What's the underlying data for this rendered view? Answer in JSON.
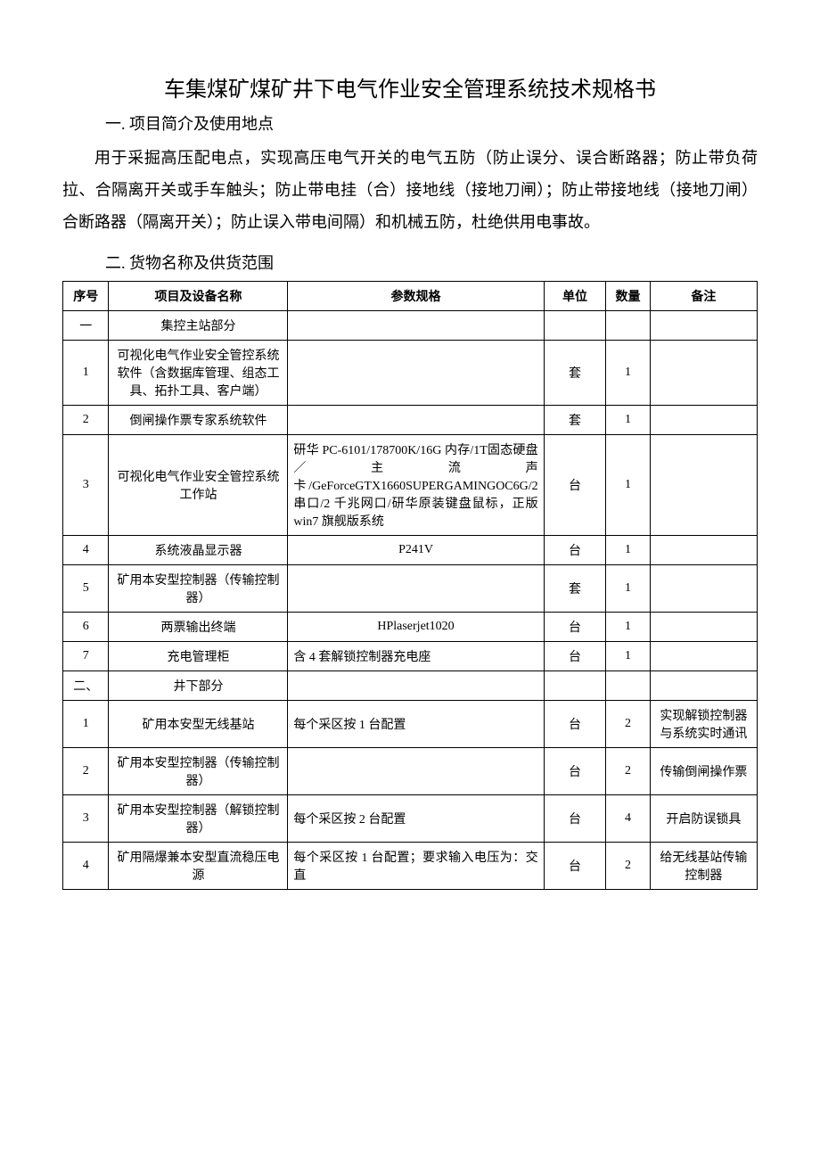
{
  "title": "车集煤矿煤矿井下电气作业安全管理系统技术规格书",
  "section1": {
    "heading": "一. 项目简介及使用地点",
    "paragraph": "用于采掘高压配电点，实现高压电气开关的电气五防（防止误分、误合断路器；防止带负荷拉、合隔离开关或手车触头；防止带电挂（合）接地线（接地刀闸）；防止带接地线（接地刀闸）合断路器（隔离开关）；防止误入带电间隔）和机械五防，杜绝供用电事故。"
  },
  "section2": {
    "heading": "二. 货物名称及供货范围"
  },
  "table": {
    "headers": {
      "seq": "序号",
      "name": "项目及设备名称",
      "spec": "参数规格",
      "unit": "单位",
      "qty": "数量",
      "note": "备注"
    },
    "rows": [
      {
        "seq": "一",
        "name": "集控主站部分",
        "spec": "",
        "unit": "",
        "qty": "",
        "note": ""
      },
      {
        "seq": "1",
        "name": "可视化电气作业安全管控系统软件（含数据库管理、组态工具、拓扑工具、客户端）",
        "spec": "",
        "unit": "套",
        "qty": "1",
        "note": ""
      },
      {
        "seq": "2",
        "name": "倒闸操作票专家系统软件",
        "spec": "",
        "unit": "套",
        "qty": "1",
        "note": ""
      },
      {
        "seq": "3",
        "name": "可视化电气作业安全管控系统工作站",
        "spec": "研华 PC-6101/178700K/16G 内存/1T固态硬盘／主流声卡/GeForceGTX1660SUPERGAMINGOC6G/2 串口/2 千兆网口/研华原装键盘鼠标，正版 win7 旗舰版系统",
        "unit": "台",
        "qty": "1",
        "note": ""
      },
      {
        "seq": "4",
        "name": "系统液晶显示器",
        "spec": "P241V",
        "unit": "台",
        "qty": "1",
        "note": ""
      },
      {
        "seq": "5",
        "name": "矿用本安型控制器（传输控制器）",
        "spec": "",
        "unit": "套",
        "qty": "1",
        "note": ""
      },
      {
        "seq": "6",
        "name": "两票输出终端",
        "spec": "HPlaserjet1020",
        "unit": "台",
        "qty": "1",
        "note": ""
      },
      {
        "seq": "7",
        "name": "充电管理柜",
        "spec": "含 4 套解锁控制器充电座",
        "unit": "台",
        "qty": "1",
        "note": ""
      },
      {
        "seq": "二、",
        "name": "井下部分",
        "spec": "",
        "unit": "",
        "qty": "",
        "note": ""
      },
      {
        "seq": "1",
        "name": "矿用本安型无线基站",
        "spec": "每个采区按 1 台配置",
        "unit": "台",
        "qty": "2",
        "note": "实现解锁控制器与系统实时通讯"
      },
      {
        "seq": "2",
        "name": "矿用本安型控制器（传输控制器）",
        "spec": "",
        "unit": "台",
        "qty": "2",
        "note": "传输倒闸操作票"
      },
      {
        "seq": "3",
        "name": "矿用本安型控制器（解锁控制器）",
        "spec": "每个采区按 2 台配置",
        "unit": "台",
        "qty": "4",
        "note": "开启防误锁具"
      },
      {
        "seq": "4",
        "name": "矿用隔爆兼本安型直流稳压电源",
        "spec": "每个采区按 1 台配置；要求输入电压为：交直",
        "unit": "台",
        "qty": "2",
        "note": "给无线基站传输控制器"
      }
    ]
  }
}
